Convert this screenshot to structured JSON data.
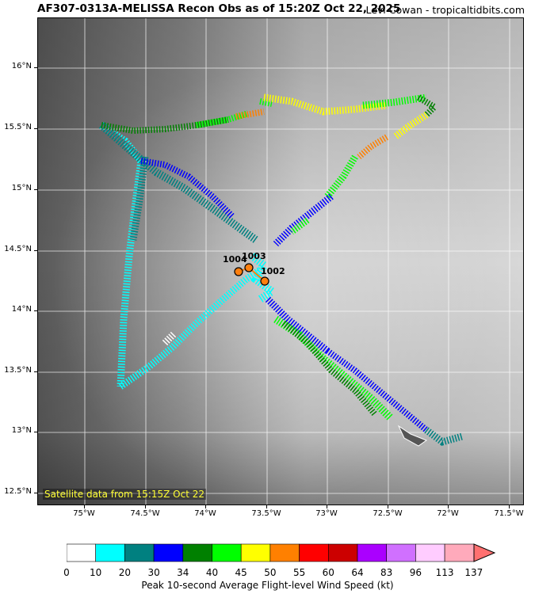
{
  "header": {
    "title": "AF307-0313A-MELISSA Recon Obs as of 15:20Z Oct 22, 2025",
    "credit": "Levi Cowan - tropicaltidbits.com"
  },
  "map": {
    "satellite_note": "Satellite data from 15:15Z Oct 22",
    "lat_labels": [
      "16°N",
      "15.5°N",
      "15°N",
      "14.5°N",
      "14°N",
      "13.5°N",
      "13°N",
      "12.5°N"
    ],
    "lon_labels": [
      "75°W",
      "74.5°W",
      "74°W",
      "73.5°W",
      "73°W",
      "72.5°W",
      "72°W",
      "71.5°W"
    ],
    "pressure_obs": [
      {
        "label": "1004",
        "lon": -73.71,
        "lat": 14.32
      },
      {
        "label": "1003",
        "lon": -73.62,
        "lat": 14.35
      },
      {
        "label": "1002",
        "lon": -73.5,
        "lat": 14.24
      }
    ],
    "marker_color": "#ff7f0e"
  },
  "colorbar": {
    "label": "Peak 10-second Average Flight-level Wind Speed (kt)",
    "ticks": [
      "0",
      "10",
      "20",
      "30",
      "34",
      "40",
      "45",
      "50",
      "55",
      "60",
      "64",
      "83",
      "96",
      "113",
      "137"
    ],
    "colors": [
      "#ffffff",
      "#00ffff",
      "#008080",
      "#0000ff",
      "#008000",
      "#00ff00",
      "#ffff00",
      "#ff8000",
      "#ff0000",
      "#cc0000",
      "#aa00ff",
      "#d070ff",
      "#ffccff",
      "#ffaabb"
    ],
    "extend_color": "#ff7070"
  }
}
